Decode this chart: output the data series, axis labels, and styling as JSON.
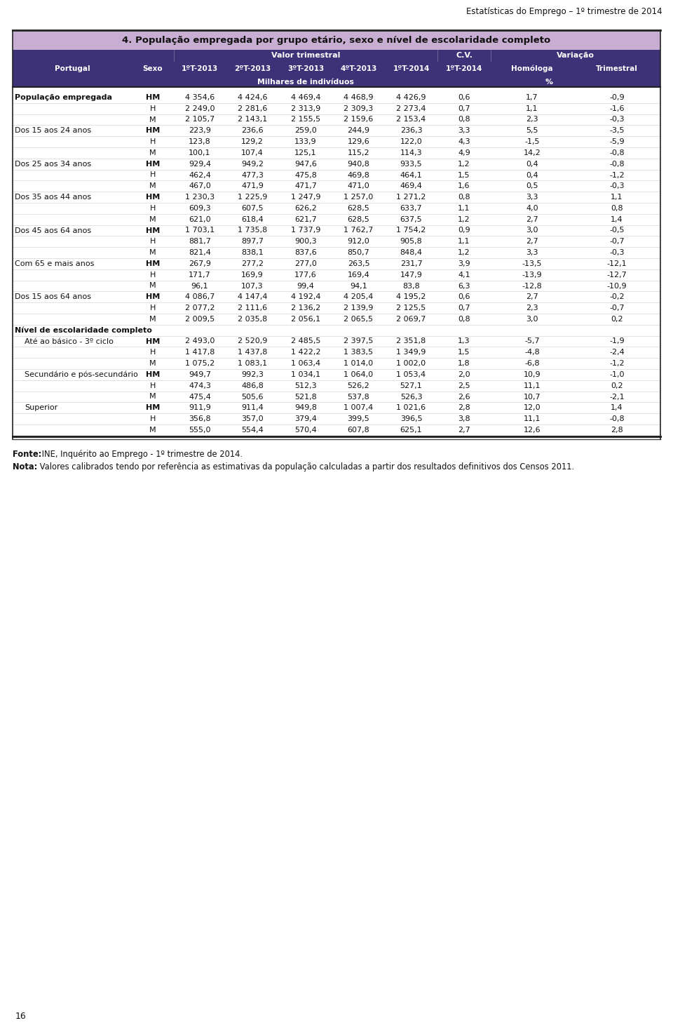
{
  "page_header": "Estatísticas do Emprego – 1º trimestre de 2014",
  "table_title": "4. População empregada por grupo etário, sexo e nível de escolaridade completo",
  "footer_fonte_bold": "Fonte:",
  "footer_fonte_rest": " INE, Inquérito ao Emprego - 1º trimestre de 2014.",
  "footer_nota_bold": "Nota:",
  "footer_nota_rest": " Valores calibrados tendo por referência as estimativas da população calculadas a partir dos resultados definitivos dos Censos 2011.",
  "page_number": "16",
  "col_positions": [
    18,
    188,
    248,
    322,
    398,
    474,
    549,
    624,
    700,
    818,
    942
  ],
  "rows": [
    {
      "label": "População empregada",
      "sex": "HM",
      "vals": [
        "4 354,6",
        "4 424,6",
        "4 469,4",
        "4 468,9",
        "4 426,9",
        "0,6",
        "1,7",
        "-0,9"
      ],
      "bold_label": true,
      "section": false,
      "indent": false
    },
    {
      "label": "",
      "sex": "H",
      "vals": [
        "2 249,0",
        "2 281,6",
        "2 313,9",
        "2 309,3",
        "2 273,4",
        "0,7",
        "1,1",
        "-1,6"
      ],
      "bold_label": false,
      "section": false,
      "indent": false
    },
    {
      "label": "",
      "sex": "M",
      "vals": [
        "2 105,7",
        "2 143,1",
        "2 155,5",
        "2 159,6",
        "2 153,4",
        "0,8",
        "2,3",
        "-0,3"
      ],
      "bold_label": false,
      "section": false,
      "indent": false
    },
    {
      "label": "Dos 15 aos 24 anos",
      "sex": "HM",
      "vals": [
        "223,9",
        "236,6",
        "259,0",
        "244,9",
        "236,3",
        "3,3",
        "5,5",
        "-3,5"
      ],
      "bold_label": false,
      "section": false,
      "indent": false
    },
    {
      "label": "",
      "sex": "H",
      "vals": [
        "123,8",
        "129,2",
        "133,9",
        "129,6",
        "122,0",
        "4,3",
        "-1,5",
        "-5,9"
      ],
      "bold_label": false,
      "section": false,
      "indent": false
    },
    {
      "label": "",
      "sex": "M",
      "vals": [
        "100,1",
        "107,4",
        "125,1",
        "115,2",
        "114,3",
        "4,9",
        "14,2",
        "-0,8"
      ],
      "bold_label": false,
      "section": false,
      "indent": false
    },
    {
      "label": "Dos 25 aos 34 anos",
      "sex": "HM",
      "vals": [
        "929,4",
        "949,2",
        "947,6",
        "940,8",
        "933,5",
        "1,2",
        "0,4",
        "-0,8"
      ],
      "bold_label": false,
      "section": false,
      "indent": false
    },
    {
      "label": "",
      "sex": "H",
      "vals": [
        "462,4",
        "477,3",
        "475,8",
        "469,8",
        "464,1",
        "1,5",
        "0,4",
        "-1,2"
      ],
      "bold_label": false,
      "section": false,
      "indent": false
    },
    {
      "label": "",
      "sex": "M",
      "vals": [
        "467,0",
        "471,9",
        "471,7",
        "471,0",
        "469,4",
        "1,6",
        "0,5",
        "-0,3"
      ],
      "bold_label": false,
      "section": false,
      "indent": false
    },
    {
      "label": "Dos 35 aos 44 anos",
      "sex": "HM",
      "vals": [
        "1 230,3",
        "1 225,9",
        "1 247,9",
        "1 257,0",
        "1 271,2",
        "0,8",
        "3,3",
        "1,1"
      ],
      "bold_label": false,
      "section": false,
      "indent": false
    },
    {
      "label": "",
      "sex": "H",
      "vals": [
        "609,3",
        "607,5",
        "626,2",
        "628,5",
        "633,7",
        "1,1",
        "4,0",
        "0,8"
      ],
      "bold_label": false,
      "section": false,
      "indent": false
    },
    {
      "label": "",
      "sex": "M",
      "vals": [
        "621,0",
        "618,4",
        "621,7",
        "628,5",
        "637,5",
        "1,2",
        "2,7",
        "1,4"
      ],
      "bold_label": false,
      "section": false,
      "indent": false
    },
    {
      "label": "Dos 45 aos 64 anos",
      "sex": "HM",
      "vals": [
        "1 703,1",
        "1 735,8",
        "1 737,9",
        "1 762,7",
        "1 754,2",
        "0,9",
        "3,0",
        "-0,5"
      ],
      "bold_label": false,
      "section": false,
      "indent": false
    },
    {
      "label": "",
      "sex": "H",
      "vals": [
        "881,7",
        "897,7",
        "900,3",
        "912,0",
        "905,8",
        "1,1",
        "2,7",
        "-0,7"
      ],
      "bold_label": false,
      "section": false,
      "indent": false
    },
    {
      "label": "",
      "sex": "M",
      "vals": [
        "821,4",
        "838,1",
        "837,6",
        "850,7",
        "848,4",
        "1,2",
        "3,3",
        "-0,3"
      ],
      "bold_label": false,
      "section": false,
      "indent": false
    },
    {
      "label": "Com 65 e mais anos",
      "sex": "HM",
      "vals": [
        "267,9",
        "277,2",
        "277,0",
        "263,5",
        "231,7",
        "3,9",
        "-13,5",
        "-12,1"
      ],
      "bold_label": false,
      "section": false,
      "indent": false
    },
    {
      "label": "",
      "sex": "H",
      "vals": [
        "171,7",
        "169,9",
        "177,6",
        "169,4",
        "147,9",
        "4,1",
        "-13,9",
        "-12,7"
      ],
      "bold_label": false,
      "section": false,
      "indent": false
    },
    {
      "label": "",
      "sex": "M",
      "vals": [
        "96,1",
        "107,3",
        "99,4",
        "94,1",
        "83,8",
        "6,3",
        "-12,8",
        "-10,9"
      ],
      "bold_label": false,
      "section": false,
      "indent": false
    },
    {
      "label": "Dos 15 aos 64 anos",
      "sex": "HM",
      "vals": [
        "4 086,7",
        "4 147,4",
        "4 192,4",
        "4 205,4",
        "4 195,2",
        "0,6",
        "2,7",
        "-0,2"
      ],
      "bold_label": false,
      "section": false,
      "indent": false
    },
    {
      "label": "",
      "sex": "H",
      "vals": [
        "2 077,2",
        "2 111,6",
        "2 136,2",
        "2 139,9",
        "2 125,5",
        "0,7",
        "2,3",
        "-0,7"
      ],
      "bold_label": false,
      "section": false,
      "indent": false
    },
    {
      "label": "",
      "sex": "M",
      "vals": [
        "2 009,5",
        "2 035,8",
        "2 056,1",
        "2 065,5",
        "2 069,7",
        "0,8",
        "3,0",
        "0,2"
      ],
      "bold_label": false,
      "section": false,
      "indent": false
    },
    {
      "label": "Nível de escolaridade completo",
      "sex": "",
      "vals": [
        "",
        "",
        "",
        "",
        "",
        "",
        "",
        ""
      ],
      "bold_label": true,
      "section": true,
      "indent": false
    },
    {
      "label": "Até ao básico - 3º ciclo",
      "sex": "HM",
      "vals": [
        "2 493,0",
        "2 520,9",
        "2 485,5",
        "2 397,5",
        "2 351,8",
        "1,3",
        "-5,7",
        "-1,9"
      ],
      "bold_label": false,
      "section": false,
      "indent": true
    },
    {
      "label": "",
      "sex": "H",
      "vals": [
        "1 417,8",
        "1 437,8",
        "1 422,2",
        "1 383,5",
        "1 349,9",
        "1,5",
        "-4,8",
        "-2,4"
      ],
      "bold_label": false,
      "section": false,
      "indent": false
    },
    {
      "label": "",
      "sex": "M",
      "vals": [
        "1 075,2",
        "1 083,1",
        "1 063,4",
        "1 014,0",
        "1 002,0",
        "1,8",
        "-6,8",
        "-1,2"
      ],
      "bold_label": false,
      "section": false,
      "indent": false
    },
    {
      "label": "Secundário e pós-secundário",
      "sex": "HM",
      "vals": [
        "949,7",
        "992,3",
        "1 034,1",
        "1 064,0",
        "1 053,4",
        "2,0",
        "10,9",
        "-1,0"
      ],
      "bold_label": false,
      "section": false,
      "indent": true
    },
    {
      "label": "",
      "sex": "H",
      "vals": [
        "474,3",
        "486,8",
        "512,3",
        "526,2",
        "527,1",
        "2,5",
        "11,1",
        "0,2"
      ],
      "bold_label": false,
      "section": false,
      "indent": false
    },
    {
      "label": "",
      "sex": "M",
      "vals": [
        "475,4",
        "505,6",
        "521,8",
        "537,8",
        "526,3",
        "2,6",
        "10,7",
        "-2,1"
      ],
      "bold_label": false,
      "section": false,
      "indent": false
    },
    {
      "label": "Superior",
      "sex": "HM",
      "vals": [
        "911,9",
        "911,4",
        "949,8",
        "1 007,4",
        "1 021,6",
        "2,8",
        "12,0",
        "1,4"
      ],
      "bold_label": false,
      "section": false,
      "indent": true
    },
    {
      "label": "",
      "sex": "H",
      "vals": [
        "356,8",
        "357,0",
        "379,4",
        "399,5",
        "396,5",
        "3,8",
        "11,1",
        "-0,8"
      ],
      "bold_label": false,
      "section": false,
      "indent": false
    },
    {
      "label": "",
      "sex": "M",
      "vals": [
        "555,0",
        "554,4",
        "570,4",
        "607,8",
        "625,1",
        "2,7",
        "12,6",
        "2,8"
      ],
      "bold_label": false,
      "section": false,
      "indent": false
    }
  ],
  "colors": {
    "title_bg": "#c9aed4",
    "header_bg": "#3d3178",
    "header_text": "#ffffff",
    "text_dark": "#111111",
    "row_line": "#cccccc",
    "outer_border_top": "#333333",
    "outer_border_bot": "#555555",
    "white": "#ffffff"
  }
}
